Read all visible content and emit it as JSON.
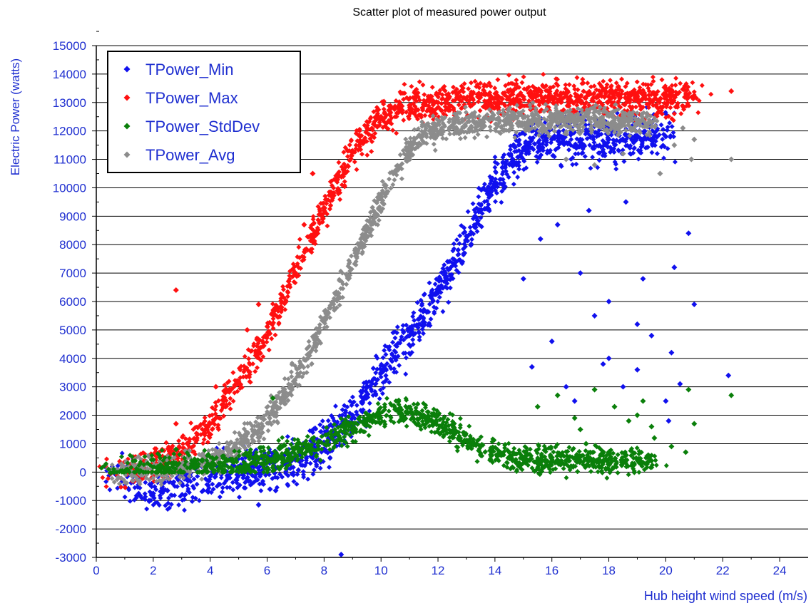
{
  "chart_data": {
    "type": "scatter",
    "title": "Scatter plot of measured power output",
    "xlabel": "Hub height wind speed (m/s)",
    "ylabel": "Electric Power (watts)",
    "xlim": [
      0,
      25
    ],
    "ylim": [
      -3000,
      15000
    ],
    "x_ticks": [
      0,
      2,
      4,
      6,
      8,
      10,
      12,
      14,
      16,
      18,
      20,
      22,
      24
    ],
    "y_ticks": [
      -3000,
      -2000,
      -1000,
      0,
      1000,
      2000,
      3000,
      4000,
      5000,
      6000,
      7000,
      8000,
      9000,
      10000,
      11000,
      12000,
      13000,
      14000,
      15000
    ],
    "grid": "horizontal",
    "legend_position": "top-left",
    "colors": {
      "title": "#000000",
      "axis_text": "#1f2fd0",
      "grid": "#000000",
      "min": "#1010ee",
      "max": "#ff1010",
      "stddev": "#0a7f0a",
      "avg": "#8c8c8c"
    },
    "series": [
      {
        "name": "TPower_Min",
        "color": "#1010ee",
        "trend": [
          [
            0.5,
            -60
          ],
          [
            1.5,
            -350
          ],
          [
            2,
            -750
          ],
          [
            2.5,
            -650
          ],
          [
            3,
            -400
          ],
          [
            4,
            -150
          ],
          [
            5,
            0
          ],
          [
            6,
            150
          ],
          [
            7,
            450
          ],
          [
            8,
            1000
          ],
          [
            9,
            2000
          ],
          [
            10,
            3500
          ],
          [
            11,
            4800
          ],
          [
            12,
            6300
          ],
          [
            13,
            8300
          ],
          [
            14,
            10200
          ],
          [
            15,
            11400
          ],
          [
            16,
            11700
          ],
          [
            17,
            11700
          ],
          [
            18,
            11700
          ],
          [
            19,
            11800
          ],
          [
            20,
            11800
          ]
        ],
        "outliers": [
          [
            5.7,
            -1150
          ],
          [
            8.6,
            -2900
          ],
          [
            6.1,
            -600
          ],
          [
            6.3,
            -650
          ],
          [
            15,
            6800
          ],
          [
            16,
            4600
          ],
          [
            16.5,
            3000
          ],
          [
            17,
            7000
          ],
          [
            17.5,
            5500
          ],
          [
            18,
            6000
          ],
          [
            18,
            4000
          ],
          [
            18.5,
            3000
          ],
          [
            19,
            5200
          ],
          [
            19,
            3600
          ],
          [
            19.5,
            4800
          ],
          [
            20,
            2500
          ],
          [
            20.2,
            4200
          ],
          [
            20.3,
            7200
          ],
          [
            20.5,
            3100
          ],
          [
            20.8,
            8400
          ],
          [
            21,
            5900
          ],
          [
            22.2,
            3400
          ],
          [
            17.3,
            9200
          ],
          [
            16.2,
            8700
          ],
          [
            15.6,
            8200
          ],
          [
            18.6,
            9500
          ],
          [
            19.2,
            6800
          ],
          [
            20.1,
            1800
          ],
          [
            16.8,
            2500
          ],
          [
            17.8,
            3800
          ],
          [
            15.3,
            3700
          ]
        ]
      },
      {
        "name": "TPower_Max",
        "color": "#ff1010",
        "trend": [
          [
            0.5,
            -50
          ],
          [
            1.5,
            250
          ],
          [
            2,
            300
          ],
          [
            3,
            700
          ],
          [
            4,
            1700
          ],
          [
            5,
            3200
          ],
          [
            6,
            4800
          ],
          [
            7,
            7000
          ],
          [
            8,
            9200
          ],
          [
            9,
            11300
          ],
          [
            10,
            12500
          ],
          [
            11,
            12900
          ],
          [
            12,
            13000
          ],
          [
            13,
            13100
          ],
          [
            14,
            13150
          ],
          [
            15,
            13200
          ],
          [
            16,
            13200
          ],
          [
            17,
            13200
          ],
          [
            18,
            13200
          ],
          [
            19,
            13200
          ],
          [
            20,
            13200
          ],
          [
            21,
            13200
          ]
        ],
        "outliers": [
          [
            2.8,
            6400
          ],
          [
            2.8,
            1700
          ],
          [
            4.2,
            3000
          ],
          [
            5.3,
            5000
          ],
          [
            5.7,
            5900
          ],
          [
            7.3,
            8700
          ],
          [
            7.6,
            10500
          ],
          [
            22.3,
            13400
          ]
        ]
      },
      {
        "name": "TPower_StdDev",
        "color": "#0a7f0a",
        "trend": [
          [
            0.5,
            -30
          ],
          [
            1.5,
            50
          ],
          [
            2.5,
            120
          ],
          [
            3.5,
            200
          ],
          [
            4.5,
            250
          ],
          [
            5.5,
            350
          ],
          [
            6.5,
            550
          ],
          [
            7.5,
            900
          ],
          [
            8.5,
            1300
          ],
          [
            9.5,
            1800
          ],
          [
            10.5,
            2200
          ],
          [
            11.5,
            2000
          ],
          [
            12.5,
            1400
          ],
          [
            13.5,
            900
          ],
          [
            14.5,
            500
          ],
          [
            15.5,
            400
          ],
          [
            16.5,
            400
          ],
          [
            17.5,
            400
          ],
          [
            18.5,
            400
          ],
          [
            19.5,
            400
          ]
        ],
        "outliers": [
          [
            2.8,
            800
          ],
          [
            6.2,
            2600
          ],
          [
            15.5,
            2300
          ],
          [
            16.2,
            2700
          ],
          [
            17,
            1500
          ],
          [
            17.5,
            2900
          ],
          [
            18.2,
            2300
          ],
          [
            18.7,
            1800
          ],
          [
            19.2,
            2500
          ],
          [
            19.6,
            1200
          ],
          [
            20.2,
            900
          ],
          [
            20.7,
            700
          ],
          [
            20.8,
            2900
          ],
          [
            21,
            1700
          ],
          [
            22.3,
            2700
          ],
          [
            17.2,
            1000
          ],
          [
            18,
            700
          ],
          [
            19,
            2000
          ],
          [
            19.5,
            1600
          ],
          [
            16.8,
            1900
          ]
        ]
      },
      {
        "name": "TPower_Avg",
        "color": "#8c8c8c",
        "trend": [
          [
            0.5,
            -20
          ],
          [
            1.5,
            60
          ],
          [
            2.5,
            100
          ],
          [
            3.5,
            250
          ],
          [
            4.5,
            600
          ],
          [
            5.5,
            1300
          ],
          [
            6.5,
            2500
          ],
          [
            7.5,
            4200
          ],
          [
            8.5,
            6300
          ],
          [
            9.5,
            8500
          ],
          [
            10.5,
            10600
          ],
          [
            11.5,
            11900
          ],
          [
            12.5,
            12200
          ],
          [
            13.5,
            12300
          ],
          [
            14.5,
            12350
          ],
          [
            15.5,
            12350
          ],
          [
            16.5,
            12400
          ],
          [
            17.5,
            12400
          ],
          [
            18.5,
            12350
          ],
          [
            19.5,
            12300
          ]
        ],
        "outliers": [
          [
            20.3,
            11500
          ],
          [
            20.6,
            12100
          ],
          [
            20.9,
            11000
          ],
          [
            21,
            11700
          ],
          [
            22.3,
            11000
          ],
          [
            16.5,
            11000
          ],
          [
            17.5,
            10800
          ],
          [
            18.5,
            11200
          ],
          [
            19.8,
            10500
          ]
        ]
      }
    ]
  }
}
